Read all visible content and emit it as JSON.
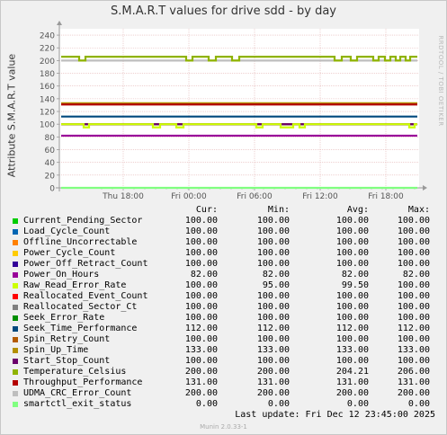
{
  "chart_data": {
    "type": "line",
    "title": "S.M.A.R.T values for drive sdd - by day",
    "ylabel": "Attribute S.M.A.R.T value",
    "watermark": "RRDTOOL / TOBI OETIKER",
    "ylim": [
      0,
      250
    ],
    "yticks": [
      0,
      20,
      40,
      60,
      80,
      100,
      120,
      140,
      160,
      180,
      200,
      220,
      240
    ],
    "xticks": [
      "Thu 18:00",
      "Fri 00:00",
      "Fri 06:00",
      "Fri 12:00",
      "Fri 18:00"
    ],
    "grid": true,
    "series": [
      {
        "name": "Current_Pending_Sector",
        "color": "#00cc00",
        "values": [
          100
        ]
      },
      {
        "name": "Load_Cycle_Count",
        "color": "#0066b3",
        "values": [
          100
        ]
      },
      {
        "name": "Offline_Uncorrectable",
        "color": "#ff8000",
        "values": [
          100
        ]
      },
      {
        "name": "Power_Cycle_Count",
        "color": "#ffcc00",
        "values": [
          100
        ]
      },
      {
        "name": "Power_Off_Retract_Count",
        "color": "#330099",
        "values": [
          100
        ]
      },
      {
        "name": "Power_On_Hours",
        "color": "#990099",
        "values": [
          82
        ]
      },
      {
        "name": "Raw_Read_Error_Rate",
        "color": "#ccff00",
        "values": [
          100,
          95
        ]
      },
      {
        "name": "Reallocated_Event_Count",
        "color": "#ff0000",
        "values": [
          100
        ]
      },
      {
        "name": "Reallocated_Sector_Ct",
        "color": "#808080",
        "values": [
          100
        ]
      },
      {
        "name": "Seek_Error_Rate",
        "color": "#008f00",
        "values": [
          100
        ]
      },
      {
        "name": "Seek_Time_Performance",
        "color": "#00487d",
        "values": [
          112
        ]
      },
      {
        "name": "Spin_Retry_Count",
        "color": "#b35a00",
        "values": [
          100
        ]
      },
      {
        "name": "Spin_Up_Time",
        "color": "#b38f00",
        "values": [
          133
        ]
      },
      {
        "name": "Start_Stop_Count",
        "color": "#6b006b",
        "values": [
          100
        ]
      },
      {
        "name": "Temperature_Celsius",
        "color": "#8fb300",
        "values": [
          206,
          200
        ]
      },
      {
        "name": "Throughput_Performance",
        "color": "#b30000",
        "values": [
          131
        ]
      },
      {
        "name": "UDMA_CRC_Error_Count",
        "color": "#bebebe",
        "values": [
          200
        ]
      },
      {
        "name": "smartctl_exit_status",
        "color": "#80ff80",
        "values": [
          0
        ]
      }
    ]
  },
  "legend": {
    "headers": {
      "cur": "Cur:",
      "min": "Min:",
      "avg": "Avg:",
      "max": "Max:"
    },
    "rows": [
      {
        "name": "Current_Pending_Sector",
        "color": "#00cc00",
        "cur": "100.00",
        "min": "100.00",
        "avg": "100.00",
        "max": "100.00"
      },
      {
        "name": "Load_Cycle_Count",
        "color": "#0066b3",
        "cur": "100.00",
        "min": "100.00",
        "avg": "100.00",
        "max": "100.00"
      },
      {
        "name": "Offline_Uncorrectable",
        "color": "#ff8000",
        "cur": "100.00",
        "min": "100.00",
        "avg": "100.00",
        "max": "100.00"
      },
      {
        "name": "Power_Cycle_Count",
        "color": "#ffcc00",
        "cur": "100.00",
        "min": "100.00",
        "avg": "100.00",
        "max": "100.00"
      },
      {
        "name": "Power_Off_Retract_Count",
        "color": "#330099",
        "cur": "100.00",
        "min": "100.00",
        "avg": "100.00",
        "max": "100.00"
      },
      {
        "name": "Power_On_Hours",
        "color": "#990099",
        "cur": "82.00",
        "min": "82.00",
        "avg": "82.00",
        "max": "82.00"
      },
      {
        "name": "Raw_Read_Error_Rate",
        "color": "#ccff00",
        "cur": "100.00",
        "min": "95.00",
        "avg": "99.50",
        "max": "100.00"
      },
      {
        "name": "Reallocated_Event_Count",
        "color": "#ff0000",
        "cur": "100.00",
        "min": "100.00",
        "avg": "100.00",
        "max": "100.00"
      },
      {
        "name": "Reallocated_Sector_Ct",
        "color": "#808080",
        "cur": "100.00",
        "min": "100.00",
        "avg": "100.00",
        "max": "100.00"
      },
      {
        "name": "Seek_Error_Rate",
        "color": "#008f00",
        "cur": "100.00",
        "min": "100.00",
        "avg": "100.00",
        "max": "100.00"
      },
      {
        "name": "Seek_Time_Performance",
        "color": "#00487d",
        "cur": "112.00",
        "min": "112.00",
        "avg": "112.00",
        "max": "112.00"
      },
      {
        "name": "Spin_Retry_Count",
        "color": "#b35a00",
        "cur": "100.00",
        "min": "100.00",
        "avg": "100.00",
        "max": "100.00"
      },
      {
        "name": "Spin_Up_Time",
        "color": "#b38f00",
        "cur": "133.00",
        "min": "133.00",
        "avg": "133.00",
        "max": "133.00"
      },
      {
        "name": "Start_Stop_Count",
        "color": "#6b006b",
        "cur": "100.00",
        "min": "100.00",
        "avg": "100.00",
        "max": "100.00"
      },
      {
        "name": "Temperature_Celsius",
        "color": "#8fb300",
        "cur": "200.00",
        "min": "200.00",
        "avg": "204.21",
        "max": "206.00"
      },
      {
        "name": "Throughput_Performance",
        "color": "#b30000",
        "cur": "131.00",
        "min": "131.00",
        "avg": "131.00",
        "max": "131.00"
      },
      {
        "name": "UDMA_CRC_Error_Count",
        "color": "#bebebe",
        "cur": "200.00",
        "min": "200.00",
        "avg": "200.00",
        "max": "200.00"
      },
      {
        "name": "smartctl_exit_status",
        "color": "#80ff80",
        "cur": "0.00",
        "min": "0.00",
        "avg": "0.00",
        "max": "0.00"
      }
    ]
  },
  "last_update": "Last update:  Fri Dec 12 23:45:00 2025",
  "footer": "Munin 2.0.33-1"
}
